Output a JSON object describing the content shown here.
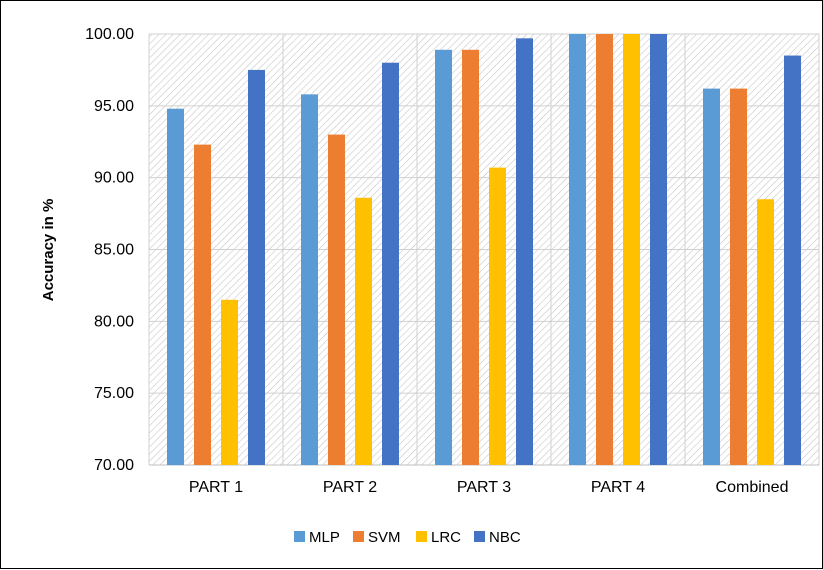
{
  "chart_data": {
    "type": "bar",
    "title": "",
    "xlabel": "",
    "ylabel": "Accuracy in %",
    "ylim": [
      70,
      100
    ],
    "yticks": [
      "70.00",
      "75.00",
      "80.00",
      "85.00",
      "90.00",
      "95.00",
      "100.00"
    ],
    "ytick_values": [
      70,
      75,
      80,
      85,
      90,
      95,
      100
    ],
    "categories": [
      "PART 1",
      "PART 2",
      "PART 3",
      "PART 4",
      "Combined"
    ],
    "series": [
      {
        "name": "MLP",
        "color": "#5B9BD5",
        "values": [
          94.8,
          95.8,
          98.9,
          100.0,
          96.2
        ]
      },
      {
        "name": "SVM",
        "color": "#ED7D31",
        "values": [
          92.3,
          93.0,
          98.9,
          100.0,
          96.2
        ]
      },
      {
        "name": "LRC",
        "color": "#FFC000",
        "values": [
          81.5,
          88.6,
          90.7,
          100.0,
          88.5
        ]
      },
      {
        "name": "NBC",
        "color": "#4472C4",
        "values": [
          97.5,
          98.0,
          99.7,
          100.0,
          98.5
        ]
      }
    ],
    "grid": true,
    "legend_position": "bottom"
  }
}
